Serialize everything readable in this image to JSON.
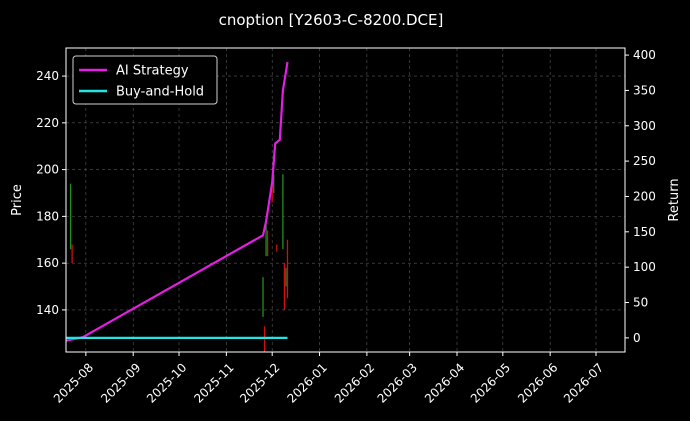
{
  "chart_data": {
    "type": "line",
    "title": "cnoption [Y2603-C-8200.DCE]",
    "xlabel": "",
    "ylabel_left": "Price",
    "ylabel_right": "Return",
    "grid": true,
    "legend_position": "top-left",
    "x_range": [
      "2025-07-19",
      "2026-07-20"
    ],
    "x_ticks": [
      "2025-08",
      "2025-09",
      "2025-10",
      "2025-11",
      "2025-12",
      "2026-01",
      "2026-02",
      "2026-03",
      "2026-04",
      "2026-05",
      "2026-06",
      "2026-07"
    ],
    "y_left": {
      "range": [
        122,
        252
      ],
      "ticks": [
        140,
        160,
        180,
        200,
        220,
        240
      ]
    },
    "y_right": {
      "range": [
        -20,
        410
      ],
      "ticks": [
        0,
        50,
        100,
        150,
        200,
        250,
        300,
        350,
        400
      ]
    },
    "candles": [
      {
        "date": "2025-07-22",
        "high": 194,
        "low": 166,
        "color": "#1f8f1f"
      },
      {
        "date": "2025-07-23",
        "high": 168,
        "low": 160,
        "color": "#d01010"
      },
      {
        "date": "2025-11-25",
        "high": 154,
        "low": 137,
        "color": "#1f8f1f"
      },
      {
        "date": "2025-11-27",
        "high": 177,
        "low": 163,
        "color": "#1f8f1f"
      },
      {
        "date": "2025-11-26",
        "high": 133,
        "low": 122,
        "color": "#d01010"
      },
      {
        "date": "2025-11-28",
        "high": 174,
        "low": 163,
        "color": "#d01010"
      },
      {
        "date": "2025-12-01",
        "high": 195,
        "low": 186,
        "color": "#d01010"
      },
      {
        "date": "2025-12-02",
        "high": 198,
        "low": 190,
        "color": "#1f8f1f"
      },
      {
        "date": "2025-12-04",
        "high": 168,
        "low": 165,
        "color": "#d01010"
      },
      {
        "date": "2025-12-08",
        "high": 198,
        "low": 166,
        "color": "#1f8f1f"
      },
      {
        "date": "2025-12-09",
        "high": 160,
        "low": 140,
        "color": "#d01010"
      },
      {
        "date": "2025-12-10",
        "high": 158,
        "low": 150,
        "color": "#1f8f1f"
      },
      {
        "date": "2025-12-11",
        "high": 170,
        "low": 145,
        "color": "#d01010"
      }
    ],
    "series": [
      {
        "name": "AI Strategy",
        "color": "#e41ee4",
        "axis": "right",
        "points": [
          [
            "2025-07-19",
            -4
          ],
          [
            "2025-07-30",
            1
          ],
          [
            "2025-11-25",
            145
          ],
          [
            "2025-11-27",
            165
          ],
          [
            "2025-12-01",
            220
          ],
          [
            "2025-12-03",
            275
          ],
          [
            "2025-12-06",
            280
          ],
          [
            "2025-12-08",
            350
          ],
          [
            "2025-12-11",
            390
          ]
        ]
      },
      {
        "name": "Buy-and-Hold",
        "color": "#22e5e5",
        "axis": "right",
        "points": [
          [
            "2025-07-19",
            0
          ],
          [
            "2025-12-11",
            0
          ]
        ]
      }
    ]
  }
}
